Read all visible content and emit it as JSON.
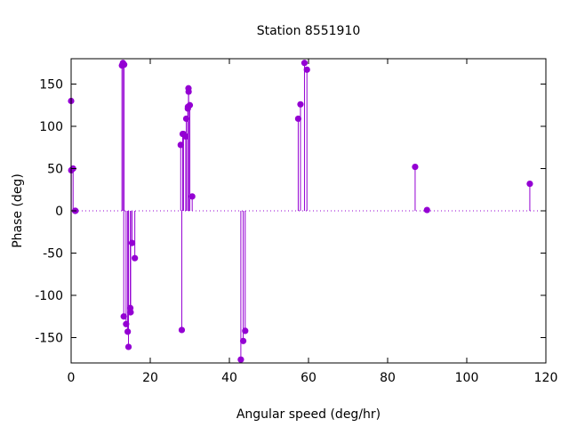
{
  "chart_data": {
    "type": "scatter",
    "title": "Station 8551910",
    "xlabel": "Angular speed (deg/hr)",
    "ylabel": "Phase (deg)",
    "xlim": [
      0,
      120
    ],
    "ylim": [
      -180,
      180
    ],
    "x_ticks": [
      0,
      20,
      40,
      60,
      80,
      100,
      120
    ],
    "y_ticks": [
      -150,
      -100,
      -50,
      0,
      50,
      100,
      150
    ],
    "style": "impulses-with-points",
    "zero_line": "dotted",
    "grid": false,
    "legend": "none",
    "color": "#9400d3",
    "series": [
      {
        "x": [
          0.0,
          0.04,
          0.5,
          1.0,
          1.1,
          12.85,
          13.4,
          13.1,
          13.3,
          13.9,
          14.3,
          14.5,
          15.0,
          14.96,
          15.04,
          15.4,
          16.1,
          27.7,
          27.97,
          28.2,
          28.4,
          28.98,
          29.1,
          29.5,
          29.53,
          29.66,
          29.7,
          30.0,
          30.6,
          42.9,
          43.5,
          44.0,
          57.4,
          57.97,
          58.98,
          59.6,
          86.95,
          89.95,
          115.94
        ],
        "y": [
          130,
          48,
          50,
          0,
          0,
          172,
          173,
          175,
          -125,
          -134,
          -143,
          -161,
          -120,
          -115,
          -120,
          -38,
          -56,
          78,
          -141,
          91,
          91,
          88,
          109,
          121,
          123,
          145,
          141,
          125,
          17,
          -176,
          -154,
          -142,
          109,
          126,
          175,
          167,
          52,
          1,
          32
        ]
      }
    ]
  }
}
